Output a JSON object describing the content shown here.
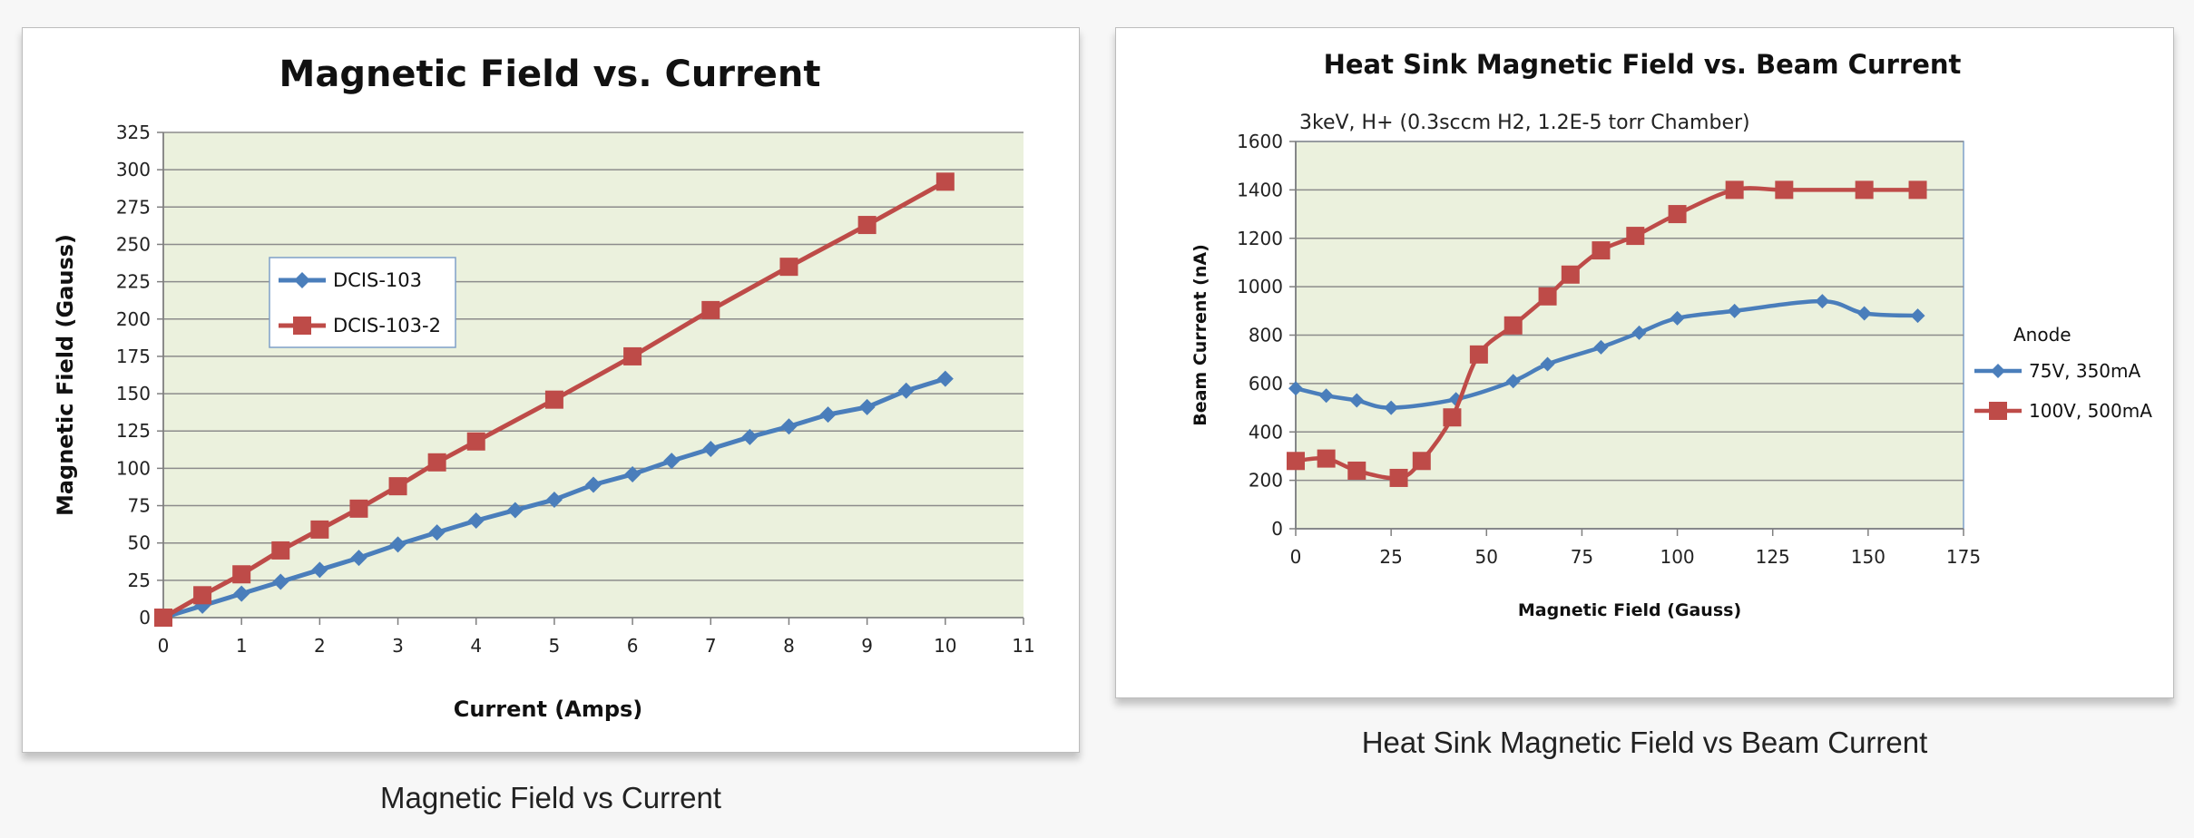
{
  "charts": [
    {
      "caption": "Magnetic Field vs Current"
    },
    {
      "caption": "Heat Sink Magnetic Field vs Beam Current"
    }
  ],
  "colors": {
    "blue": "#4a7ebb",
    "red": "#be4b48",
    "plot_bg": "#ebf1dd",
    "grid": "#8c8c8c"
  },
  "chart_data": [
    {
      "type": "line",
      "title": "Magnetic Field vs. Current",
      "xlabel": "Current (Amps)",
      "ylabel": "Magnetic Field (Gauss)",
      "xlim": [
        0,
        11
      ],
      "ylim": [
        0,
        325
      ],
      "x_ticks": [
        0,
        1,
        2,
        3,
        4,
        5,
        6,
        7,
        8,
        9,
        10,
        11
      ],
      "y_ticks": [
        0,
        25,
        50,
        75,
        100,
        125,
        150,
        175,
        200,
        225,
        250,
        275,
        300,
        325
      ],
      "grid": true,
      "legend": "top-left",
      "series": [
        {
          "name": "DCIS-103",
          "color": "#4a7ebb",
          "marker": "diamond",
          "x": [
            0,
            0.5,
            1,
            1.5,
            2,
            2.5,
            3,
            3.5,
            4,
            4.5,
            5,
            5.5,
            6,
            6.5,
            7,
            7.5,
            8,
            8.5,
            9,
            9.5,
            10
          ],
          "y": [
            0,
            8,
            16,
            24,
            32,
            40,
            49,
            57,
            65,
            72,
            79,
            89,
            96,
            105,
            113,
            121,
            128,
            136,
            141,
            152,
            160
          ]
        },
        {
          "name": "DCIS-103-2",
          "color": "#be4b48",
          "marker": "square",
          "x": [
            0,
            0.5,
            1,
            1.5,
            2,
            2.5,
            3,
            3.5,
            4,
            5,
            6,
            7,
            8,
            9,
            10
          ],
          "y": [
            0,
            15,
            29,
            45,
            59,
            73,
            88,
            104,
            118,
            146,
            175,
            206,
            235,
            263,
            292
          ]
        }
      ]
    },
    {
      "type": "line",
      "title": "Heat Sink Magnetic Field vs. Beam Current",
      "subtitle": "3keV, H+  (0.3sccm H2, 1.2E-5 torr Chamber)",
      "xlabel": "Magnetic Field (Gauss)",
      "ylabel": "Beam Current (nA)",
      "xlim": [
        0,
        175
      ],
      "ylim": [
        0,
        1600
      ],
      "x_ticks": [
        0,
        25,
        50,
        75,
        100,
        125,
        150,
        175
      ],
      "y_ticks": [
        0,
        200,
        400,
        600,
        800,
        1000,
        1200,
        1400,
        1600
      ],
      "grid": true,
      "legend": "right",
      "legend_title": "Anode",
      "series": [
        {
          "name": "75V, 350mA",
          "color": "#4a7ebb",
          "marker": "diamond",
          "x": [
            0,
            8,
            16,
            25,
            42,
            57,
            66,
            80,
            90,
            100,
            115,
            138,
            149,
            163
          ],
          "y": [
            580,
            550,
            530,
            500,
            535,
            610,
            680,
            750,
            810,
            870,
            900,
            940,
            890,
            880
          ]
        },
        {
          "name": "100V, 500mA",
          "color": "#be4b48",
          "marker": "square",
          "x": [
            0,
            8,
            16,
            27,
            33,
            41,
            48,
            57,
            66,
            72,
            80,
            89,
            100,
            115,
            128,
            149,
            163
          ],
          "y": [
            280,
            290,
            240,
            210,
            280,
            460,
            720,
            840,
            960,
            1050,
            1150,
            1210,
            1300,
            1400,
            1400,
            1400,
            1400
          ]
        }
      ]
    }
  ]
}
